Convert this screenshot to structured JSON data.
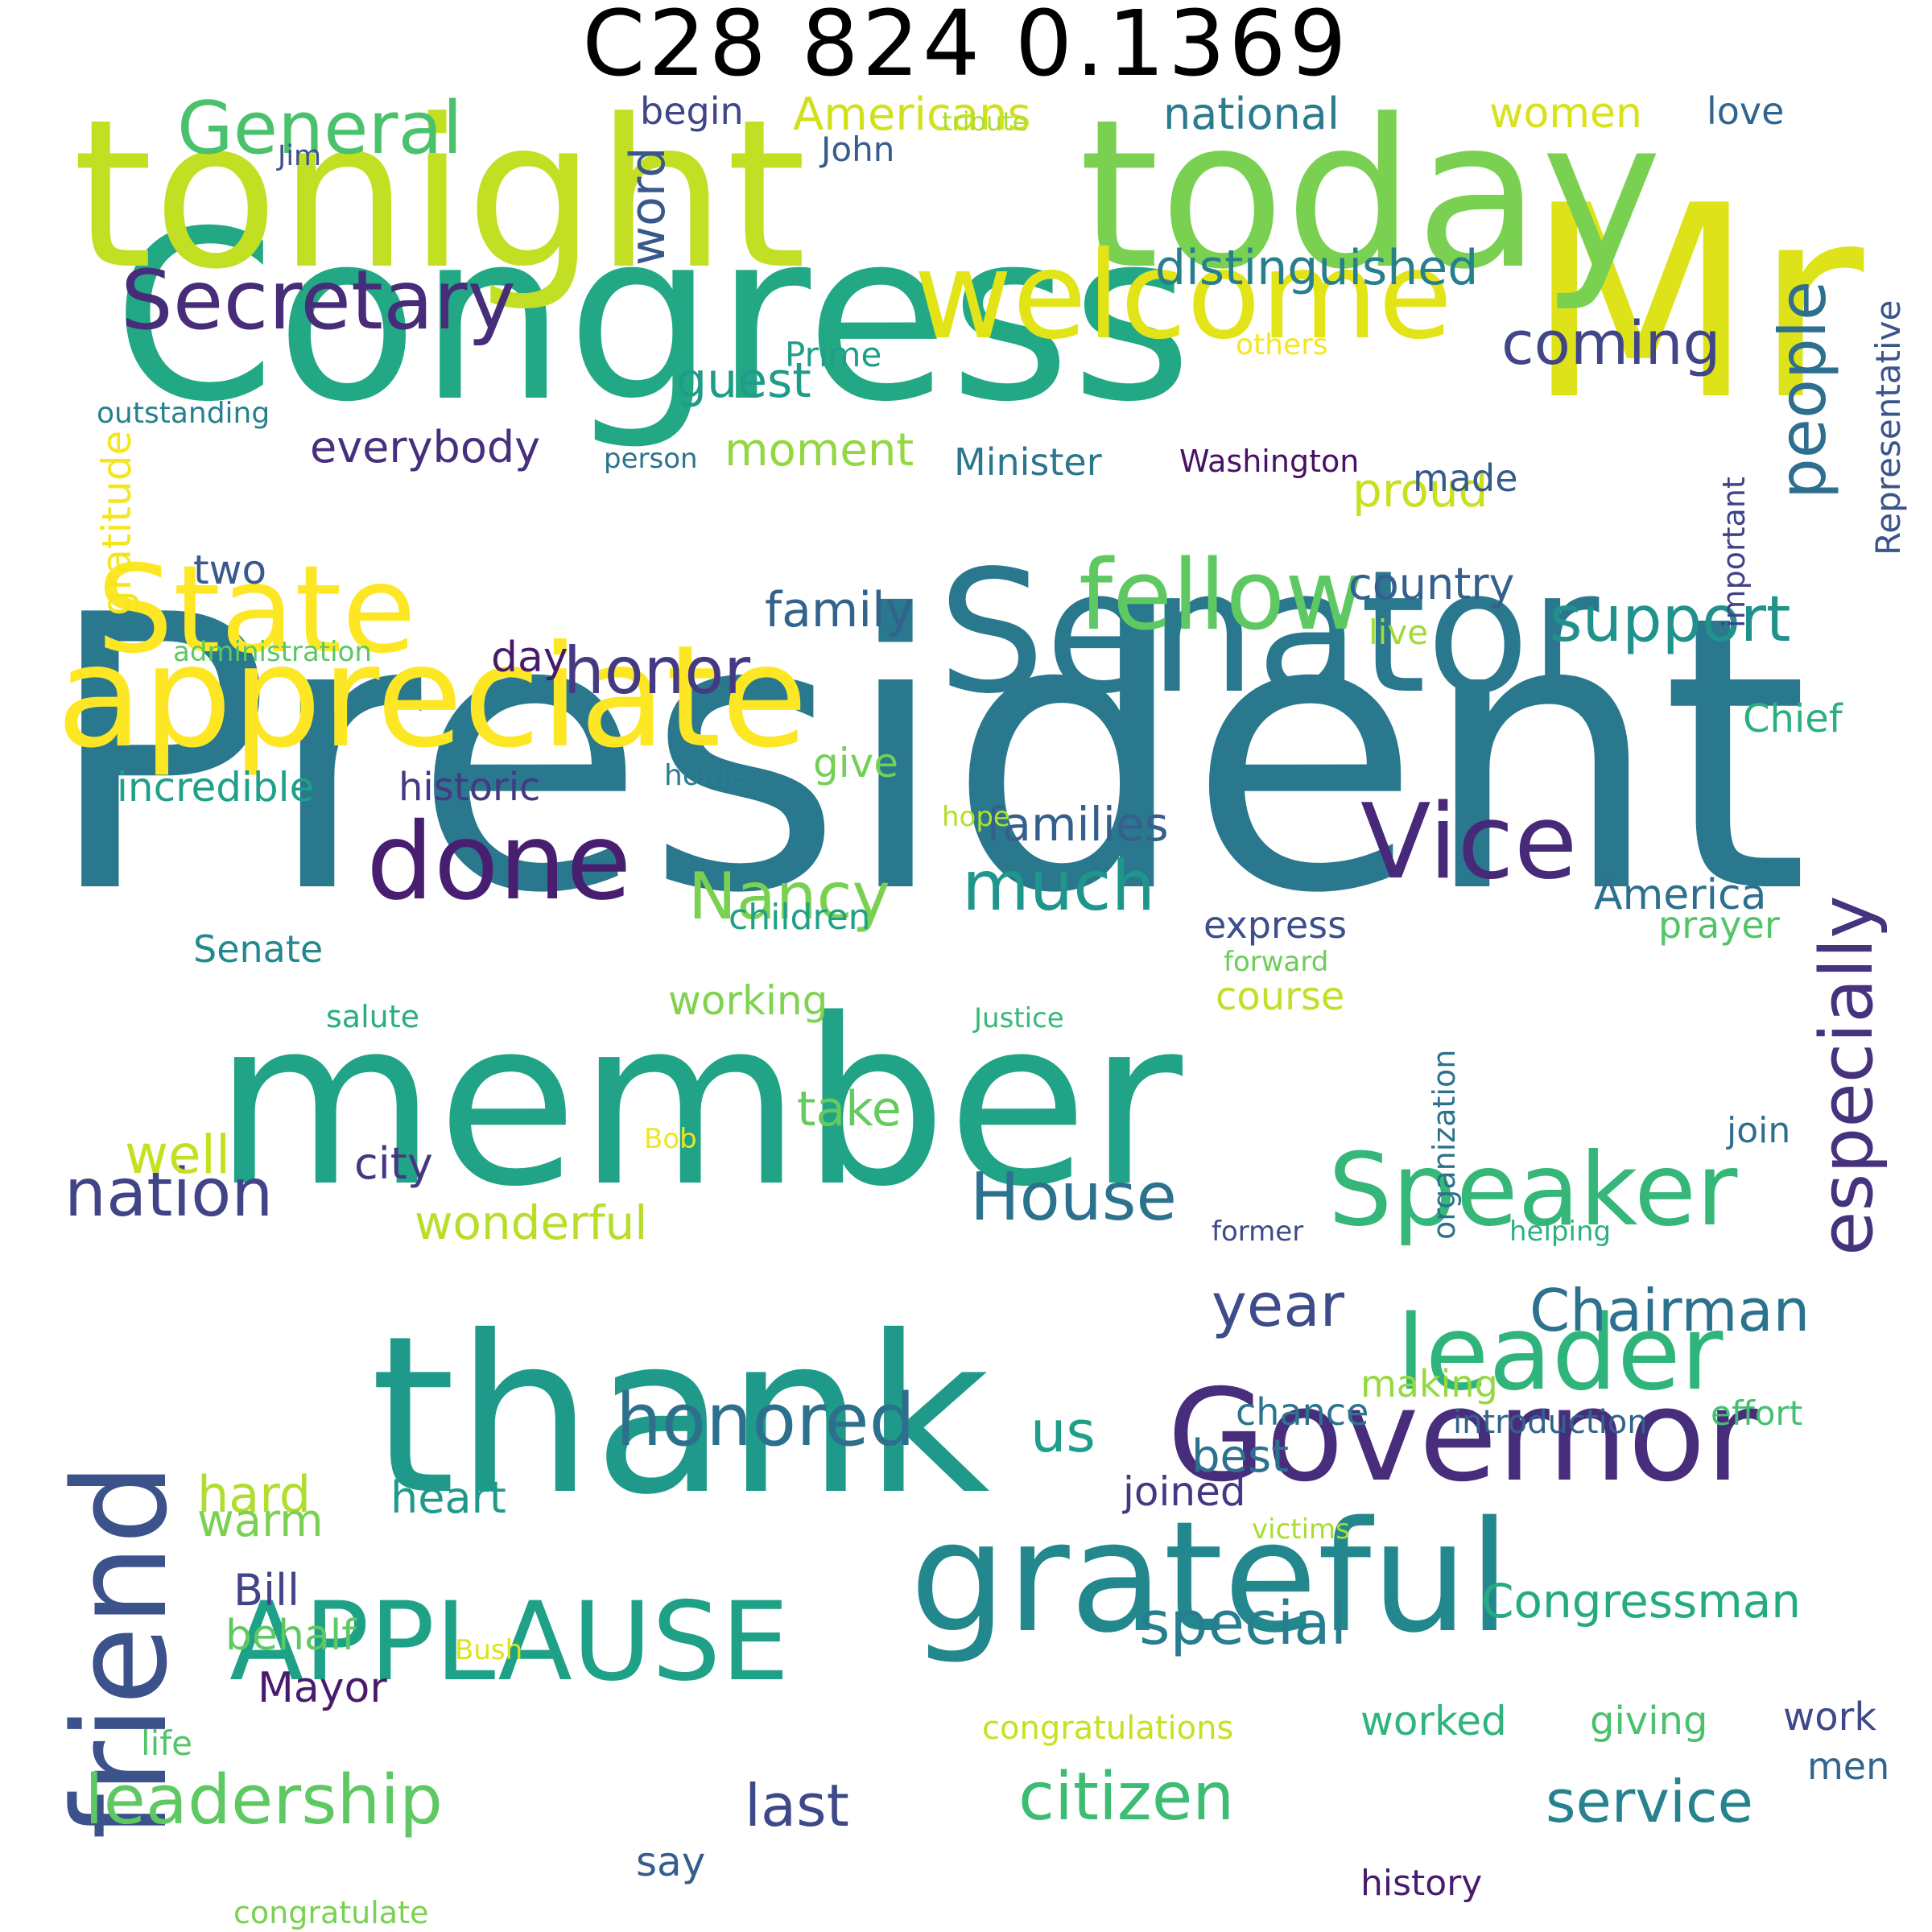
{
  "title": "C28 824 0.1369",
  "words": [
    {
      "text": "President",
      "color": "#2a788e"
    },
    {
      "text": "Congress",
      "color": "#22a884"
    },
    {
      "text": "Mr",
      "color": "#dde318"
    },
    {
      "text": "tonight",
      "color": "#c2df23"
    },
    {
      "text": "today",
      "color": "#7ad151"
    },
    {
      "text": "member",
      "color": "#20a386"
    },
    {
      "text": "thank",
      "color": "#1f9a8a"
    },
    {
      "text": "Senator",
      "color": "#2a788e"
    },
    {
      "text": "grateful",
      "color": "#23888e"
    },
    {
      "text": "appreciate",
      "color": "#fde725"
    },
    {
      "text": "State",
      "color": "#fde725"
    },
    {
      "text": "welcome",
      "color": "#e2e418"
    },
    {
      "text": "Governor",
      "color": "#472d7b"
    },
    {
      "text": "friend",
      "color": "#3b528b"
    },
    {
      "text": "APPLAUSE",
      "color": "#1fa187"
    },
    {
      "text": "Speaker",
      "color": "#35b779"
    },
    {
      "text": "leader",
      "color": "#2fb47c"
    },
    {
      "text": "fellow",
      "color": "#5ec962"
    },
    {
      "text": "done",
      "color": "#481f70"
    },
    {
      "text": "Vice",
      "color": "#482878"
    },
    {
      "text": "Secretary",
      "color": "#472c7a"
    },
    {
      "text": "General",
      "color": "#4ac16d"
    },
    {
      "text": "especially",
      "color": "#46337e"
    },
    {
      "text": "people",
      "color": "#2e6e8e"
    },
    {
      "text": "honored",
      "color": "#2d708e"
    },
    {
      "text": "leadership",
      "color": "#5ec962"
    },
    {
      "text": "citizen",
      "color": "#3dbc74"
    },
    {
      "text": "service",
      "color": "#26828e"
    },
    {
      "text": "Nancy",
      "color": "#7ad151"
    },
    {
      "text": "much",
      "color": "#1f968b"
    },
    {
      "text": "honor",
      "color": "#443a83"
    },
    {
      "text": "nation",
      "color": "#414487"
    },
    {
      "text": "House",
      "color": "#2c728e"
    },
    {
      "text": "Chairman",
      "color": "#2c718e"
    },
    {
      "text": "support",
      "color": "#21918c"
    },
    {
      "text": "coming",
      "color": "#404688"
    },
    {
      "text": "distinguished",
      "color": "#277f8e"
    },
    {
      "text": "special",
      "color": "#277e8e"
    },
    {
      "text": "Congressman",
      "color": "#25ab82"
    },
    {
      "text": "last",
      "color": "#3e4989"
    },
    {
      "text": "year",
      "color": "#3e4c8a"
    },
    {
      "text": "us",
      "color": "#1f9e89"
    },
    {
      "text": "wonderful",
      "color": "#b8de29"
    },
    {
      "text": "word",
      "color": "#38588c"
    },
    {
      "text": "guest",
      "color": "#1e9c89"
    },
    {
      "text": "proud",
      "color": "#c8e020"
    },
    {
      "text": "national",
      "color": "#2a7b8e"
    },
    {
      "text": "Americans",
      "color": "#d0e11c"
    },
    {
      "text": "women",
      "color": "#d8e219"
    },
    {
      "text": "love",
      "color": "#32658e"
    },
    {
      "text": "begin",
      "color": "#3f4788"
    },
    {
      "text": "John",
      "color": "#365c8d"
    },
    {
      "text": "tribute",
      "color": "#aadc32"
    },
    {
      "text": "Jim",
      "color": "#3b528b"
    },
    {
      "text": "families",
      "color": "#355f8d"
    },
    {
      "text": "family",
      "color": "#33628d"
    },
    {
      "text": "incredible",
      "color": "#1fa088"
    },
    {
      "text": "historic",
      "color": "#443983"
    },
    {
      "text": "give",
      "color": "#73d056"
    },
    {
      "text": "home",
      "color": "#287d8e"
    },
    {
      "text": "hope",
      "color": "#b5de2b"
    },
    {
      "text": "children",
      "color": "#1fa187"
    },
    {
      "text": "Senate",
      "color": "#23898e"
    },
    {
      "text": "working",
      "color": "#7fd34e"
    },
    {
      "text": "salute",
      "color": "#28ae80"
    },
    {
      "text": "Justice",
      "color": "#37b878"
    },
    {
      "text": "course",
      "color": "#c0df25"
    },
    {
      "text": "forward",
      "color": "#6ccd5a"
    },
    {
      "text": "express",
      "color": "#3d4e8a"
    },
    {
      "text": "prayer",
      "color": "#52c569"
    },
    {
      "text": "America",
      "color": "#2d708e"
    },
    {
      "text": "take",
      "color": "#65cb5e"
    },
    {
      "text": "well",
      "color": "#c5e021"
    },
    {
      "text": "city",
      "color": "#453781"
    },
    {
      "text": "Bob",
      "color": "#f1e51d"
    },
    {
      "text": "former",
      "color": "#3e4a89"
    },
    {
      "text": "helping",
      "color": "#2db27d"
    },
    {
      "text": "join",
      "color": "#2e6f8e"
    },
    {
      "text": "organization",
      "color": "#2c728e"
    },
    {
      "text": "gratitude",
      "color": "#f4e61e"
    },
    {
      "text": "Representative",
      "color": "#3a548c"
    },
    {
      "text": "important",
      "color": "#404387"
    },
    {
      "text": "outstanding",
      "color": "#27808e"
    },
    {
      "text": "person",
      "color": "#2c738e"
    },
    {
      "text": "Washington",
      "color": "#471164"
    },
    {
      "text": "others",
      "color": "#f6e620"
    },
    {
      "text": "Prime",
      "color": "#1f9e89"
    },
    {
      "text": "everybody",
      "color": "#462f7d"
    },
    {
      "text": "moment",
      "color": "#93d741"
    },
    {
      "text": "Minister",
      "color": "#2a778e"
    },
    {
      "text": "made",
      "color": "#375a8c"
    },
    {
      "text": "two",
      "color": "#38598c"
    },
    {
      "text": "country",
      "color": "#34608d"
    },
    {
      "text": "live",
      "color": "#a2da37"
    },
    {
      "text": "day",
      "color": "#481a6c"
    },
    {
      "text": "administration",
      "color": "#5ac864"
    },
    {
      "text": "Chief",
      "color": "#2ab07f"
    },
    {
      "text": "making",
      "color": "#95d840"
    },
    {
      "text": "chance",
      "color": "#2c738e"
    },
    {
      "text": "introduction",
      "color": "#33628d"
    },
    {
      "text": "effort",
      "color": "#44bf70"
    },
    {
      "text": "best",
      "color": "#2d718e"
    },
    {
      "text": "joined",
      "color": "#453882"
    },
    {
      "text": "victims",
      "color": "#aadc32"
    },
    {
      "text": "hard",
      "color": "#b0dd2f"
    },
    {
      "text": "warm",
      "color": "#7ad151"
    },
    {
      "text": "heart",
      "color": "#1f9a8a"
    },
    {
      "text": "Bill",
      "color": "#414487"
    },
    {
      "text": "behalf",
      "color": "#5ec962"
    },
    {
      "text": "Mayor",
      "color": "#481b6d"
    },
    {
      "text": "Bush",
      "color": "#dde318"
    },
    {
      "text": "congratulations",
      "color": "#c8e020"
    },
    {
      "text": "worked",
      "color": "#2fb47c"
    },
    {
      "text": "giving",
      "color": "#4ac16d"
    },
    {
      "text": "work",
      "color": "#3e4989"
    },
    {
      "text": "men",
      "color": "#31668e"
    },
    {
      "text": "life",
      "color": "#52c569"
    },
    {
      "text": "say",
      "color": "#365d8d"
    },
    {
      "text": "history",
      "color": "#481b6d"
    },
    {
      "text": "congratulate",
      "color": "#7ad151"
    }
  ]
}
